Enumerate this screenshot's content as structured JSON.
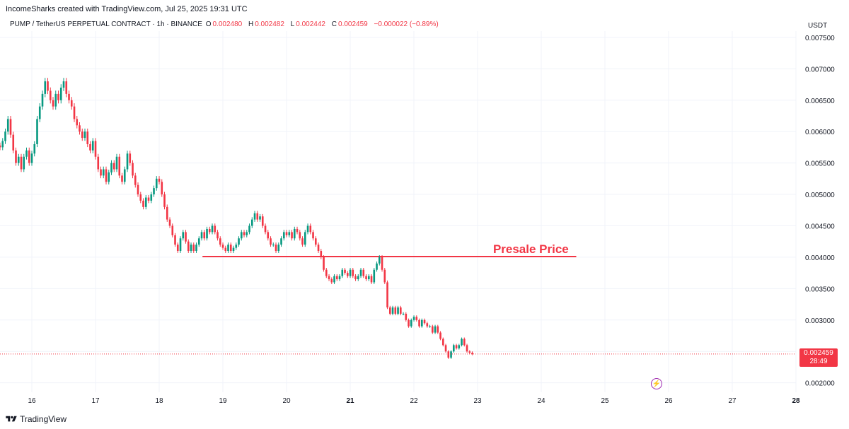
{
  "credit": "IncomeSharks created with TradingView.com, Jul 25, 2025 19:31 UTC",
  "legend": {
    "symbol": "PUMP / TetherUS PERPETUAL CONTRACT · 1h · BINANCE",
    "o_label": "O",
    "o_value": "0.002480",
    "h_label": "H",
    "h_value": "0.002482",
    "l_label": "L",
    "l_value": "0.002442",
    "c_label": "C",
    "c_value": "0.002459",
    "change": "−0.000022 (−0.89%)"
  },
  "currency": "USDT",
  "price_label": {
    "price": "0.002459",
    "countdown": "28:49"
  },
  "footer": {
    "brand": "TradingView"
  },
  "flash_icon": "lightning-icon",
  "colors": {
    "up": "#089981",
    "down": "#f23645",
    "annotation": "#f23645"
  },
  "chart_data": {
    "type": "candlestick",
    "xlim": [
      15.5,
      28.0
    ],
    "ylim": [
      0.00185,
      0.0076
    ],
    "y_ticks": [
      "0.007500",
      "0.007000",
      "0.006500",
      "0.006000",
      "0.005500",
      "0.005000",
      "0.004500",
      "0.004000",
      "0.003500",
      "0.003000",
      "0.002500",
      "0.002000"
    ],
    "y_tick_values": [
      0.0075,
      0.007,
      0.0065,
      0.006,
      0.0055,
      0.005,
      0.0045,
      0.004,
      0.0035,
      0.003,
      0.0025,
      0.002
    ],
    "x_ticks": [
      "16",
      "17",
      "18",
      "19",
      "20",
      "21",
      "22",
      "23",
      "24",
      "25",
      "26",
      "27",
      "28"
    ],
    "x_tick_values": [
      16,
      17,
      18,
      19,
      20,
      21,
      22,
      23,
      24,
      25,
      26,
      27,
      28
    ],
    "current_price": 0.002459,
    "annotation": {
      "label": "Presale Price",
      "value": 0.00401,
      "x_start": 18.68,
      "x_end": 24.55
    },
    "candle_start": 15.5,
    "candle_step": 0.04167,
    "closes": [
      0.00575,
      0.00585,
      0.006,
      0.0062,
      0.00595,
      0.0057,
      0.0055,
      0.0056,
      0.0054,
      0.0056,
      0.0057,
      0.0055,
      0.00565,
      0.0058,
      0.0062,
      0.0064,
      0.0066,
      0.0068,
      0.00665,
      0.0065,
      0.0064,
      0.0066,
      0.0065,
      0.0067,
      0.0068,
      0.0066,
      0.0065,
      0.0064,
      0.0062,
      0.0061,
      0.006,
      0.0059,
      0.006,
      0.0058,
      0.0057,
      0.00585,
      0.0056,
      0.0054,
      0.0053,
      0.0054,
      0.0052,
      0.00535,
      0.0055,
      0.0054,
      0.0056,
      0.0053,
      0.0052,
      0.0054,
      0.00565,
      0.0055,
      0.0053,
      0.00515,
      0.005,
      0.0049,
      0.0048,
      0.00495,
      0.0049,
      0.005,
      0.0051,
      0.00525,
      0.0052,
      0.005,
      0.0048,
      0.0046,
      0.0045,
      0.00435,
      0.0042,
      0.0041,
      0.0043,
      0.0044,
      0.00425,
      0.0041,
      0.0042,
      0.0041,
      0.0042,
      0.0043,
      0.0044,
      0.0043,
      0.00445,
      0.0044,
      0.0045,
      0.0044,
      0.0043,
      0.0042,
      0.00415,
      0.0041,
      0.0042,
      0.0041,
      0.00415,
      0.0042,
      0.0043,
      0.0044,
      0.00435,
      0.0044,
      0.0045,
      0.0046,
      0.0047,
      0.0046,
      0.00465,
      0.0045,
      0.0044,
      0.0043,
      0.0042,
      0.0042,
      0.0041,
      0.0042,
      0.0043,
      0.0044,
      0.00435,
      0.0044,
      0.0043,
      0.00445,
      0.0044,
      0.0043,
      0.0042,
      0.0044,
      0.0045,
      0.0044,
      0.0043,
      0.0042,
      0.0041,
      0.004,
      0.0038,
      0.0037,
      0.00365,
      0.0036,
      0.0037,
      0.00365,
      0.0037,
      0.0038,
      0.00375,
      0.0037,
      0.0038,
      0.0037,
      0.00365,
      0.0037,
      0.0038,
      0.0037,
      0.00365,
      0.0037,
      0.0036,
      0.0038,
      0.0039,
      0.004,
      0.0038,
      0.0036,
      0.0032,
      0.0031,
      0.0032,
      0.0031,
      0.0032,
      0.0031,
      0.0031,
      0.003,
      0.0029,
      0.003,
      0.00305,
      0.003,
      0.0029,
      0.003,
      0.00295,
      0.0029,
      0.0029,
      0.0028,
      0.0029,
      0.0028,
      0.0027,
      0.0026,
      0.0025,
      0.0024,
      0.0025,
      0.0026,
      0.00255,
      0.0026,
      0.0027,
      0.0026,
      0.0025,
      0.00248,
      0.002459
    ]
  }
}
